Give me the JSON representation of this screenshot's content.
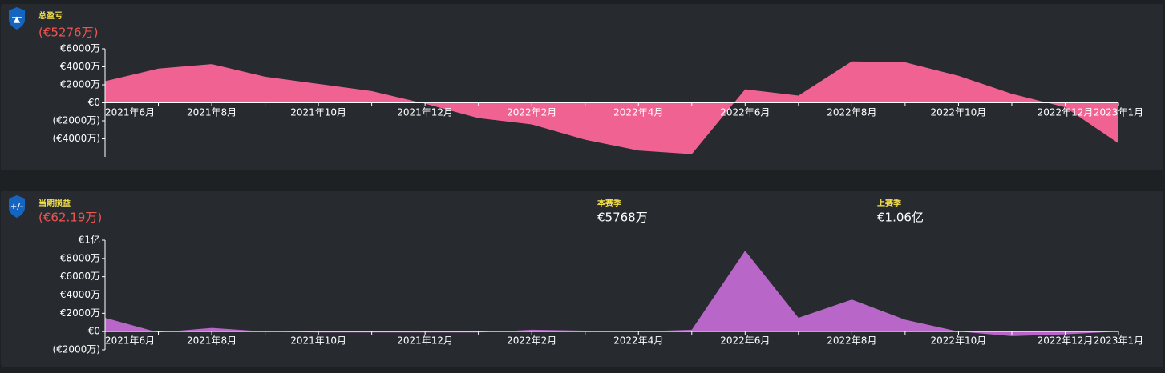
{
  "chart_data": [
    {
      "type": "area",
      "title": "总盈亏",
      "subtitle": "(€5276万)",
      "color": "#f06292",
      "categories": [
        "2021年6月",
        null,
        "2021年8月",
        null,
        "2021年10月",
        null,
        "2021年12月",
        null,
        "2022年2月",
        null,
        "2022年4月",
        null,
        "2022年6月",
        null,
        "2022年8月",
        null,
        "2022年10月",
        null,
        "2022年12月",
        "2023年1月"
      ],
      "values": [
        2400,
        3800,
        4300,
        2900,
        2100,
        1300,
        -100,
        -1700,
        -2400,
        -4100,
        -5300,
        -5700,
        1500,
        800,
        4600,
        4500,
        3000,
        1000,
        -500,
        -4500
      ],
      "ylim": [
        -6000,
        6000
      ],
      "yticks": [
        {
          "value": 6000,
          "label": "€6000万"
        },
        {
          "value": 4000,
          "label": "€4000万"
        },
        {
          "value": 2000,
          "label": "€2000万"
        },
        {
          "value": 0,
          "label": "€0"
        },
        {
          "value": -2000,
          "label": "(€2000万)"
        },
        {
          "value": -4000,
          "label": "(€4000万)"
        }
      ]
    },
    {
      "type": "area",
      "title": "当期损益",
      "subtitle": "(€62.19万)",
      "color": "#b966c9",
      "stats": [
        {
          "label": "本赛季",
          "value": "€5768万"
        },
        {
          "label": "上赛季",
          "value": "€1.06亿"
        }
      ],
      "categories": [
        "2021年6月",
        null,
        "2021年8月",
        null,
        "2021年10月",
        null,
        "2021年12月",
        null,
        "2022年2月",
        null,
        "2022年4月",
        null,
        "2022年6月",
        null,
        "2022年8月",
        null,
        "2022年10月",
        null,
        "2022年12月",
        "2023年1月"
      ],
      "values": [
        1500,
        -100,
        400,
        0,
        -100,
        -100,
        -100,
        -100,
        200,
        100,
        0,
        200,
        8850,
        1500,
        3500,
        1300,
        0,
        -500,
        -300,
        0
      ],
      "ylim": [
        -2000,
        10000
      ],
      "yticks": [
        {
          "value": 10000,
          "label": "€1亿"
        },
        {
          "value": 8000,
          "label": "€8000万"
        },
        {
          "value": 6000,
          "label": "€6000万"
        },
        {
          "value": 4000,
          "label": "€4000万"
        },
        {
          "value": 2000,
          "label": "€2000万"
        },
        {
          "value": 0,
          "label": "€0"
        },
        {
          "value": -2000,
          "label": "(€2000万)"
        }
      ]
    }
  ]
}
